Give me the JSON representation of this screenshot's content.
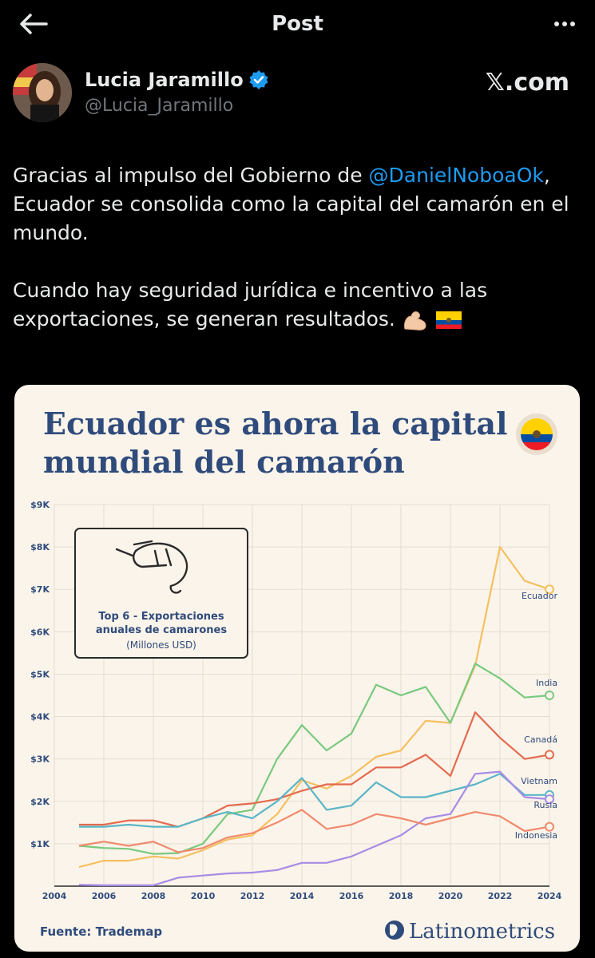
{
  "header": {
    "title": "Post"
  },
  "author": {
    "name": "Lucia Jaramillo",
    "handle": "@Lucia_Jaramillo",
    "source": "𝕏.com"
  },
  "post": {
    "line1_pre": "Gracias al impulso del Gobierno de ",
    "mention": "@DanielNoboaOk",
    "line1_post": ",",
    "line2": "Ecuador se consolida como la capital del camarón en el mundo.",
    "para2": "Cuando hay seguridad jurídica e incentivo a las exportaciones, se generan resultados."
  },
  "infographic": {
    "title_line1": "Ecuador es ahora la capital",
    "title_line2": "mundial del camarón",
    "box_line1": "Top 6 - Exportaciones",
    "box_line2": "anuales de camarones",
    "box_line3": "(Millones USD)",
    "source": "Fuente: Trademap",
    "brand": "Latinometrics"
  },
  "chart_data": {
    "type": "line",
    "x_ticks": [
      "2004",
      "2006",
      "2008",
      "2010",
      "2012",
      "2014",
      "2016",
      "2018",
      "2020",
      "2022",
      "2024"
    ],
    "y_ticks": [
      "$1K",
      "$2K",
      "$3K",
      "$4K",
      "$5K",
      "$6K",
      "$7K",
      "$8K",
      "$9K"
    ],
    "xlim": [
      2004,
      2024
    ],
    "ylim": [
      0,
      9000
    ],
    "x": [
      2005,
      2006,
      2007,
      2008,
      2009,
      2010,
      2011,
      2012,
      2013,
      2014,
      2015,
      2016,
      2017,
      2018,
      2019,
      2020,
      2021,
      2022,
      2023,
      2024
    ],
    "series": [
      {
        "name": "Ecuador",
        "color": "#f5c060",
        "values": [
          450,
          600,
          600,
          700,
          650,
          850,
          1100,
          1200,
          1700,
          2500,
          2300,
          2600,
          3050,
          3200,
          3900,
          3850,
          5200,
          8000,
          7200,
          7000
        ]
      },
      {
        "name": "India",
        "color": "#79c97f",
        "values": [
          950,
          900,
          880,
          760,
          780,
          1000,
          1700,
          1800,
          3000,
          3800,
          3200,
          3600,
          4750,
          4500,
          4700,
          3850,
          5250,
          4900,
          4450,
          4500
        ]
      },
      {
        "name": "Canadá",
        "color": "#e46a4e",
        "values": [
          1450,
          1450,
          1550,
          1550,
          1400,
          1600,
          1900,
          1950,
          2050,
          2250,
          2400,
          2400,
          2800,
          2800,
          3100,
          2600,
          4100,
          3500,
          3000,
          3100
        ]
      },
      {
        "name": "Vietnam",
        "color": "#5ab6c7",
        "values": [
          1400,
          1400,
          1450,
          1400,
          1400,
          1600,
          1750,
          1600,
          2000,
          2550,
          1800,
          1900,
          2450,
          2100,
          2100,
          2250,
          2400,
          2650,
          2150,
          2150
        ]
      },
      {
        "name": "Rusia",
        "color": "#a78be6",
        "values": [
          30,
          20,
          20,
          20,
          200,
          250,
          300,
          320,
          380,
          550,
          550,
          700,
          950,
          1200,
          1600,
          1700,
          2650,
          2700,
          2100,
          2050
        ]
      },
      {
        "name": "Indonesia",
        "color": "#f08a6e",
        "values": [
          950,
          1050,
          950,
          1050,
          800,
          900,
          1150,
          1250,
          1500,
          1800,
          1350,
          1450,
          1700,
          1600,
          1450,
          1600,
          1750,
          1650,
          1300,
          1400
        ]
      }
    ]
  }
}
